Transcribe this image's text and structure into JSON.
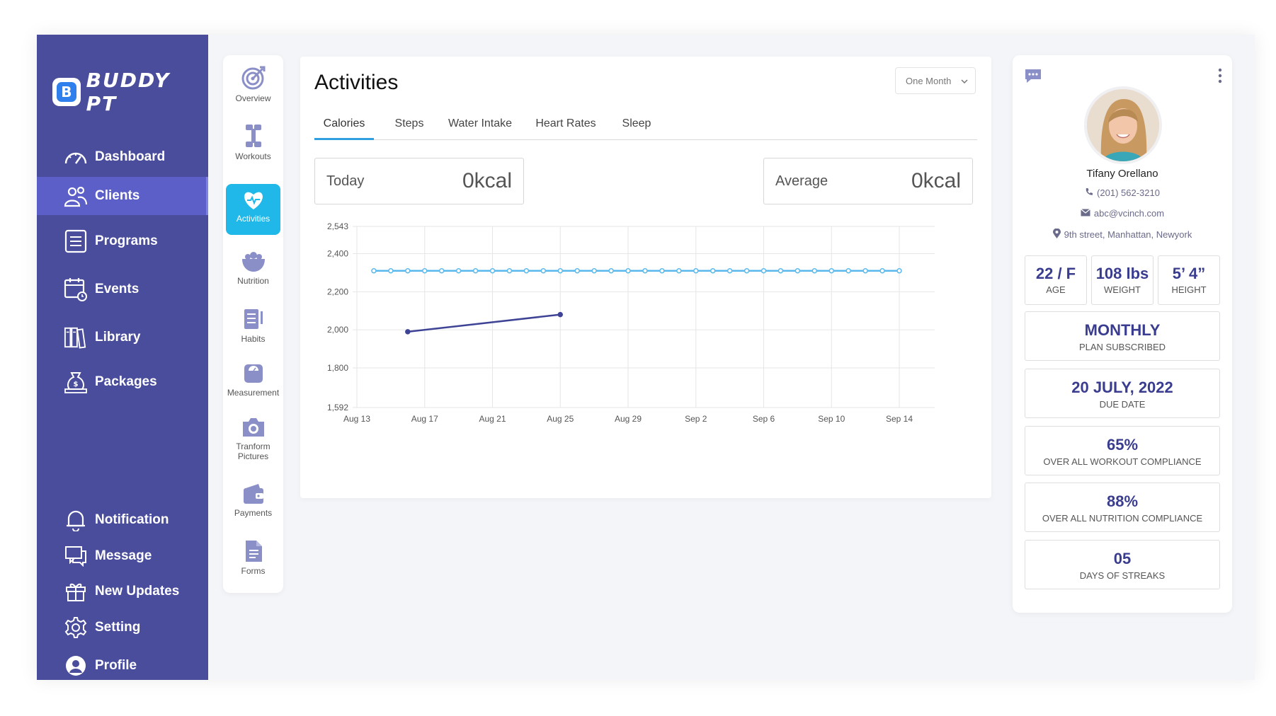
{
  "app": {
    "logo_letter": "B",
    "name": "BUDDY PT"
  },
  "sidebar": {
    "items": [
      {
        "label": "Dashboard",
        "icon": "speedometer-icon"
      },
      {
        "label": "Clients",
        "icon": "users-icon",
        "active": true
      },
      {
        "label": "Programs",
        "icon": "list-icon"
      },
      {
        "label": "Events",
        "icon": "calendar-icon"
      },
      {
        "label": "Library",
        "icon": "books-icon"
      },
      {
        "label": "Packages",
        "icon": "money-bag-icon"
      }
    ],
    "bottom_items": [
      {
        "label": "Notification",
        "icon": "bell-icon"
      },
      {
        "label": "Message",
        "icon": "chat-icon"
      },
      {
        "label": "New Updates",
        "icon": "gift-icon"
      },
      {
        "label": "Setting",
        "icon": "gear-icon"
      },
      {
        "label": "Profile",
        "icon": "user-circle-icon"
      }
    ]
  },
  "subnav": {
    "items": [
      {
        "label": "Overview",
        "icon": "target-icon"
      },
      {
        "label": "Workouts",
        "icon": "dumbbell-icon"
      },
      {
        "label": "Activities",
        "icon": "heart-pulse-icon",
        "active": true
      },
      {
        "label": "Nutrition",
        "icon": "bowl-icon"
      },
      {
        "label": "Habits",
        "icon": "checklist-icon"
      },
      {
        "label": "Measurement",
        "icon": "scale-icon"
      },
      {
        "label": "Tranform Pictures",
        "icon": "camera-icon"
      },
      {
        "label": "Payments",
        "icon": "wallet-icon"
      },
      {
        "label": "Forms",
        "icon": "document-icon"
      }
    ]
  },
  "main": {
    "title": "Activities",
    "period": "One Month",
    "tabs": [
      "Calories",
      "Steps",
      "Water Intake",
      "Heart Rates",
      "Sleep"
    ],
    "today_label": "Today",
    "today_value": "0kcal",
    "average_label": "Average",
    "average_value": "0kcal"
  },
  "chart_data": {
    "type": "line",
    "x_ticks": [
      "Aug 13",
      "Aug 17",
      "Aug 21",
      "Aug 25",
      "Aug 29",
      "Sep 2",
      "Sep 6",
      "Sep 10",
      "Sep 14"
    ],
    "y_ticks": [
      1592,
      1800,
      2000,
      2200,
      2400,
      2543
    ],
    "y_tick_labels": [
      "1,592",
      "1,800",
      "2,000",
      "2,200",
      "2,400",
      "2,543"
    ],
    "ylim": [
      1592,
      2543
    ],
    "x_start": "Aug 13",
    "x_end": "Sep 14",
    "series": [
      {
        "color": "#5bb8ec",
        "x": [
          "Aug 14",
          "Aug 15",
          "Aug 16",
          "Aug 17",
          "Aug 18",
          "Aug 19",
          "Aug 20",
          "Aug 21",
          "Aug 22",
          "Aug 23",
          "Aug 24",
          "Aug 25",
          "Aug 26",
          "Aug 27",
          "Aug 28",
          "Aug 29",
          "Aug 30",
          "Aug 31",
          "Sep 1",
          "Sep 2",
          "Sep 3",
          "Sep 4",
          "Sep 5",
          "Sep 6",
          "Sep 7",
          "Sep 8",
          "Sep 9",
          "Sep 10",
          "Sep 11",
          "Sep 12",
          "Sep 13",
          "Sep 14"
        ],
        "values": [
          2310,
          2310,
          2310,
          2310,
          2310,
          2310,
          2310,
          2310,
          2310,
          2310,
          2310,
          2310,
          2310,
          2310,
          2310,
          2310,
          2310,
          2310,
          2310,
          2310,
          2310,
          2310,
          2310,
          2310,
          2310,
          2310,
          2310,
          2310,
          2310,
          2310,
          2310,
          2310
        ]
      },
      {
        "color": "#3e4395",
        "x": [
          "Aug 16",
          "Aug 25"
        ],
        "values": [
          1990,
          2080
        ]
      }
    ],
    "grid": true
  },
  "profile": {
    "name": "Tifany Orellano",
    "phone": "(201) 562-3210",
    "email": "abc@vcinch.com",
    "address": "9th street, Manhattan, Newyork",
    "stats": [
      {
        "value": "22 / F",
        "label": "AGE"
      },
      {
        "value": "108 lbs",
        "label": "WEIGHT"
      },
      {
        "value": "5’ 4”",
        "label": "HEIGHT"
      }
    ],
    "cards": [
      {
        "value": "MONTHLY",
        "label": "PLAN SUBSCRIBED"
      },
      {
        "value": "20 JULY, 2022",
        "label": "DUE DATE"
      },
      {
        "value": "65%",
        "label": "OVER ALL WORKOUT COMPLIANCE"
      },
      {
        "value": "88%",
        "label": "OVER ALL NUTRITION COMPLIANCE"
      },
      {
        "value": "05",
        "label": "DAYS OF STREAKS"
      }
    ]
  },
  "colors": {
    "sidebar": "#4a4d9c",
    "active_sub": "#1fb8e8",
    "accent_dark": "#3a3d8f",
    "tab_underline": "#2f9fe0"
  }
}
